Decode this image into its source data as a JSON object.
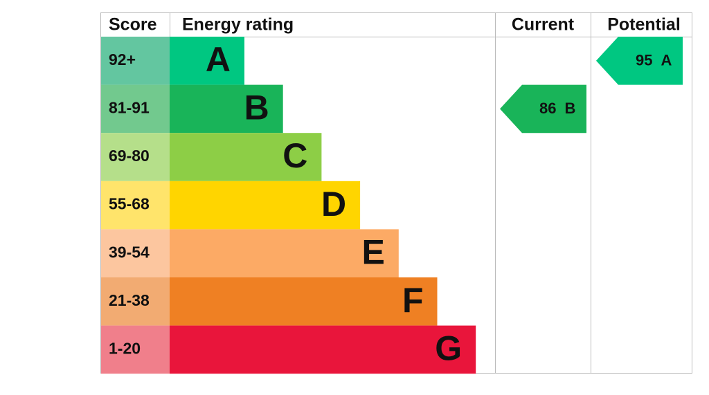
{
  "header": {
    "score": "Score",
    "rating": "Energy rating",
    "current": "Current",
    "potential": "Potential"
  },
  "bands": [
    {
      "score": "92+",
      "letter": "A",
      "color": "#00c781",
      "score_color": "#63c6a0"
    },
    {
      "score": "81-91",
      "letter": "B",
      "color": "#19b459",
      "score_color": "#72c98e"
    },
    {
      "score": "69-80",
      "letter": "C",
      "color": "#8dce46",
      "score_color": "#b5df8a"
    },
    {
      "score": "55-68",
      "letter": "D",
      "color": "#ffd500",
      "score_color": "#ffe46b"
    },
    {
      "score": "39-54",
      "letter": "E",
      "color": "#fcaa65",
      "score_color": "#fcc69f"
    },
    {
      "score": "21-38",
      "letter": "F",
      "color": "#ef8023",
      "score_color": "#f2ab72"
    },
    {
      "score": "1-20",
      "letter": "G",
      "color": "#e9153b",
      "score_color": "#f07f8b"
    }
  ],
  "current": {
    "value": 86,
    "letter": "B"
  },
  "potential": {
    "value": 95,
    "letter": "A"
  }
}
